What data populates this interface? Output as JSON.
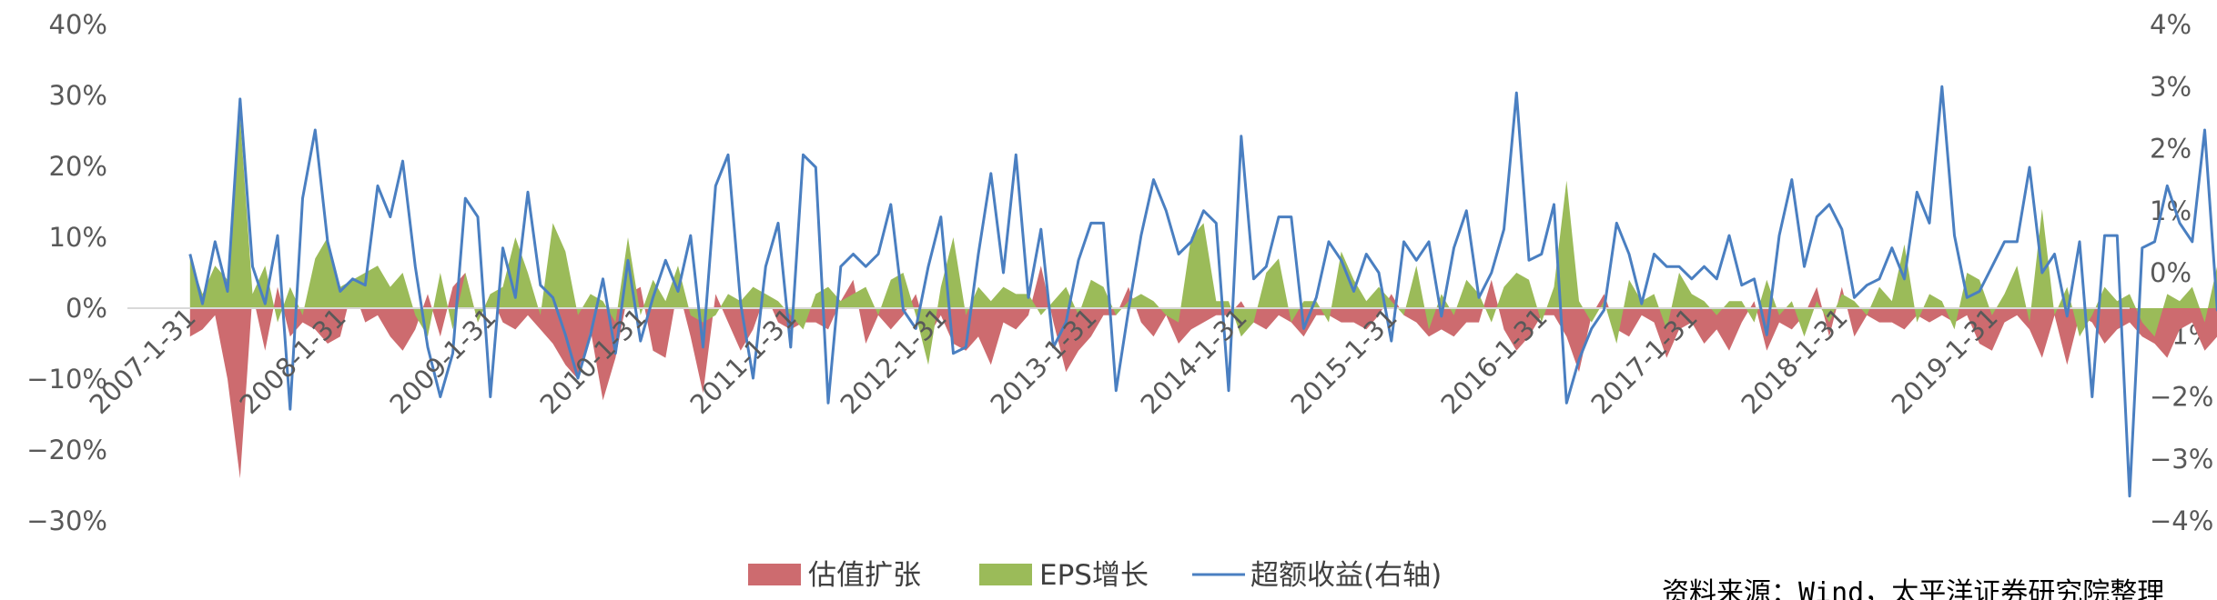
{
  "chart_data": {
    "type": "area",
    "title": "",
    "xlabel": "",
    "ylabel": "",
    "left_axis": {
      "range": [
        -30,
        40
      ],
      "ticks": [
        {
          "value": 40,
          "label": "40%"
        },
        {
          "value": 30,
          "label": "30%"
        },
        {
          "value": 20,
          "label": "20%"
        },
        {
          "value": 10,
          "label": "10%"
        },
        {
          "value": 0,
          "label": "0%"
        },
        {
          "value": -10,
          "label": "−10%"
        },
        {
          "value": -20,
          "label": "−20%"
        },
        {
          "value": -30,
          "label": "−30%"
        }
      ]
    },
    "right_axis": {
      "range": [
        -4,
        4
      ],
      "ticks": [
        {
          "value": 4,
          "label": "4%"
        },
        {
          "value": 3,
          "label": "3%"
        },
        {
          "value": 2,
          "label": "2%"
        },
        {
          "value": 1,
          "label": "1%"
        },
        {
          "value": 0,
          "label": "0%"
        },
        {
          "value": -1,
          "label": "−1%"
        },
        {
          "value": -2,
          "label": "−2%"
        },
        {
          "value": -3,
          "label": "−3%"
        },
        {
          "value": -4,
          "label": "−4%"
        }
      ]
    },
    "x_tick_labels": [
      {
        "month": 0,
        "label": "2007-1-31"
      },
      {
        "month": 12,
        "label": "2008-1-31"
      },
      {
        "month": 24,
        "label": "2009-1-31"
      },
      {
        "month": 36,
        "label": "2010-1-31"
      },
      {
        "month": 48,
        "label": "2011-1-31"
      },
      {
        "month": 60,
        "label": "2012-1-31"
      },
      {
        "month": 72,
        "label": "2013-1-31"
      },
      {
        "month": 84,
        "label": "2014-1-31"
      },
      {
        "month": 96,
        "label": "2015-1-31"
      },
      {
        "month": 108,
        "label": "2016-1-31"
      },
      {
        "month": 120,
        "label": "2017-1-31"
      },
      {
        "month": 132,
        "label": "2018-1-31"
      },
      {
        "month": 144,
        "label": "2019-1-31"
      }
    ],
    "x_month_range": [
      -5,
      155
    ],
    "legend_position": "bottom",
    "series": [
      {
        "name": "估值扩张",
        "kind": "area",
        "axis": "left",
        "color": "#cd6b6f",
        "values": [
          -4,
          -3,
          -1,
          -10,
          -24,
          2,
          -6,
          3,
          -4,
          -2,
          -3,
          -5,
          -4,
          3,
          -2,
          -1,
          -4,
          -6,
          -3,
          2,
          -4,
          3,
          5,
          -2,
          2,
          -2,
          -3,
          -1,
          -3,
          -5,
          -8,
          -10,
          -3,
          -13,
          -7,
          2,
          3,
          -6,
          -7,
          3,
          -4,
          -12,
          2,
          -2,
          -6,
          -3,
          2,
          -2,
          -3,
          -2,
          -2,
          -3,
          1,
          4,
          -5,
          -1,
          -3,
          -1,
          2,
          -4,
          -1,
          -5,
          -6,
          -4,
          -8,
          -2,
          -3,
          -1,
          6,
          -2,
          -9,
          -6,
          -4,
          -1,
          -1,
          3,
          -2,
          -4,
          -1,
          -5,
          -3,
          -2,
          -1,
          -1,
          1,
          -2,
          -3,
          -1,
          -2,
          -4,
          -1,
          -1,
          -2,
          -2,
          -3,
          -1,
          2,
          -1,
          -2,
          -4,
          -3,
          -4,
          -2,
          -2,
          4,
          -3,
          -6,
          -4,
          -1,
          -1,
          -4,
          -9,
          -1,
          2,
          -3,
          -4,
          -1,
          -2,
          -7,
          -3,
          -2,
          -5,
          -3,
          -6,
          -2,
          1,
          -6,
          -2,
          -3,
          -1,
          3,
          -4,
          3,
          -4,
          -1,
          -2,
          -2,
          -3,
          -1,
          -2,
          -1,
          -2,
          -1,
          -5,
          -6,
          -2,
          -1,
          -3,
          -7,
          -1,
          -8,
          -1,
          -2,
          -5,
          -3,
          -2,
          -4,
          -5,
          -7,
          -3,
          -2,
          -6,
          -4,
          -1,
          -5,
          -3
        ]
      },
      {
        "name": "EPS增长",
        "kind": "area",
        "axis": "left",
        "color": "#9bbb59",
        "values": [
          7,
          2,
          6,
          4,
          27,
          2,
          6,
          -2,
          3,
          -1,
          7,
          10,
          3,
          4,
          5,
          6,
          3,
          5,
          -1,
          -4,
          5,
          -3,
          5,
          -2,
          2,
          3,
          10,
          5,
          -1,
          12,
          8,
          -1,
          2,
          1,
          -2,
          10,
          -1,
          4,
          1,
          6,
          -1,
          -2,
          -1,
          2,
          1,
          3,
          2,
          1,
          -1,
          -3,
          2,
          3,
          1,
          2,
          3,
          -1,
          4,
          5,
          -1,
          -8,
          3,
          10,
          -1,
          3,
          1,
          3,
          2,
          2,
          -1,
          1,
          3,
          -1,
          4,
          3,
          -1,
          1,
          2,
          1,
          -1,
          -2,
          10,
          12,
          1,
          1,
          -4,
          -2,
          5,
          7,
          -2,
          1,
          1,
          -2,
          8,
          4,
          1,
          3,
          1,
          -1,
          6,
          -3,
          2,
          -1,
          4,
          2,
          -2,
          3,
          5,
          4,
          -2,
          3,
          18,
          1,
          -2,
          1,
          -5,
          4,
          1,
          2,
          -3,
          5,
          2,
          1,
          -1,
          1,
          1,
          -2,
          4,
          -1,
          1,
          -4,
          1,
          -2,
          2,
          1,
          -1,
          3,
          1,
          9,
          -2,
          2,
          1,
          -3,
          5,
          4,
          -1,
          2,
          6,
          -2,
          14,
          -1,
          3,
          -4,
          -1,
          3,
          1,
          2,
          -2,
          -4,
          2,
          1,
          3,
          -2,
          6,
          1
        ]
      },
      {
        "name": "超额收益(右轴)",
        "kind": "line",
        "axis": "right",
        "color": "#4a7fc1",
        "values": [
          0.3,
          -0.5,
          0.5,
          -0.3,
          2.8,
          0.1,
          -0.5,
          0.6,
          -2.2,
          1.2,
          2.3,
          0.5,
          -0.3,
          -0.1,
          -0.2,
          1.4,
          0.9,
          1.8,
          0.1,
          -1.2,
          -2.0,
          -1.3,
          1.2,
          0.9,
          -2.0,
          0.4,
          -0.4,
          1.3,
          -0.2,
          -0.4,
          -1.0,
          -1.7,
          -1.0,
          -0.1,
          -1.3,
          0.2,
          -1.1,
          -0.4,
          0.2,
          -0.3,
          0.6,
          -1.2,
          1.4,
          1.9,
          -0.5,
          -1.7,
          0.1,
          0.8,
          -1.2,
          1.9,
          1.7,
          -2.1,
          0.1,
          0.3,
          0.1,
          0.3,
          1.1,
          -0.6,
          -0.9,
          0.1,
          0.9,
          -1.3,
          -1.2,
          0.3,
          1.6,
          0.0,
          1.9,
          -0.4,
          0.7,
          -1.2,
          -0.8,
          0.2,
          0.8,
          0.8,
          -1.9,
          -0.6,
          0.6,
          1.5,
          1.0,
          0.3,
          0.5,
          1.0,
          0.8,
          -1.9,
          2.2,
          -0.1,
          0.1,
          0.9,
          0.9,
          -0.9,
          -0.4,
          0.5,
          0.2,
          -0.3,
          0.3,
          0.0,
          -1.1,
          0.5,
          0.2,
          0.5,
          -0.7,
          0.4,
          1.0,
          -0.4,
          0.0,
          0.7,
          2.9,
          0.2,
          0.3,
          1.1,
          -2.1,
          -1.4,
          -0.9,
          -0.6,
          0.8,
          0.3,
          -0.5,
          0.3,
          0.1,
          0.1,
          -0.1,
          0.1,
          -0.1,
          0.6,
          -0.2,
          -0.1,
          -1.0,
          0.6,
          1.5,
          0.1,
          0.9,
          1.1,
          0.7,
          -0.4,
          -0.2,
          -0.1,
          0.4,
          -0.1,
          1.3,
          0.8,
          3.0,
          0.6,
          -0.4,
          -0.3,
          0.1,
          0.5,
          0.5,
          1.7,
          0.0,
          0.3,
          -0.7,
          0.5,
          -2.0,
          0.6,
          0.6,
          -3.6,
          0.4,
          0.5,
          1.4,
          0.8,
          0.5,
          2.3,
          -0.6,
          0.4
        ]
      }
    ]
  },
  "legend": {
    "items": [
      {
        "label": "估值扩张",
        "color": "#cd6b6f",
        "icon": "rect-swatch"
      },
      {
        "label": "EPS增长",
        "color": "#9bbb59",
        "icon": "rect-swatch"
      },
      {
        "label": "超额收益(右轴)",
        "color": "#4a7fc1",
        "icon": "line-swatch"
      }
    ]
  },
  "source_note": "资料来源：Wind，太平洋证券研究院整理"
}
